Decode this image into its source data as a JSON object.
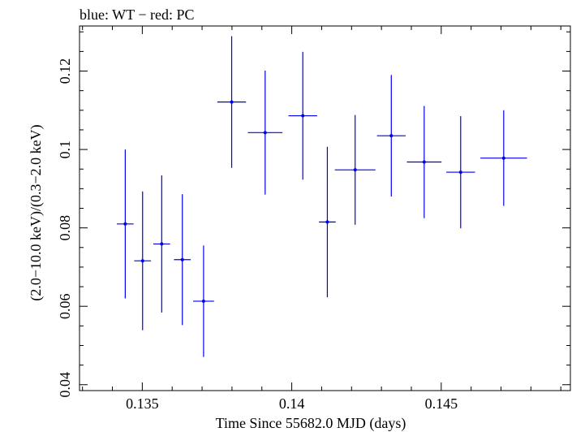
{
  "chart_data": {
    "type": "scatter",
    "title": "blue: WT − red: PC",
    "xlabel": "Time Since 55682.0 MJD (days)",
    "ylabel": "(2.0−10.0 keV)/(0.3−2.0 keV)",
    "xlim": [
      0.1329,
      0.14932
    ],
    "ylim": [
      0.0385,
      0.1315
    ],
    "x_ticks": [
      0.135,
      0.14,
      0.145
    ],
    "x_tick_labels": [
      "0.135",
      "0.14",
      "0.145"
    ],
    "y_ticks": [
      0.04,
      0.06,
      0.08,
      0.1,
      0.12
    ],
    "y_tick_labels": [
      "0.04",
      "0.06",
      "0.08",
      "0.1",
      "0.12"
    ],
    "grid": false,
    "series": [
      {
        "color": "#0000ee",
        "points": [
          {
            "x": 0.13443,
            "x_err": 0.00028,
            "y": 0.081,
            "y_err": 0.019
          },
          {
            "x": 0.13501,
            "x_err": 0.00028,
            "y": 0.0716,
            "y_err": 0.0177
          },
          {
            "x": 0.13565,
            "x_err": 0.00028,
            "y": 0.0759,
            "y_err": 0.0175
          },
          {
            "x": 0.13634,
            "x_err": 0.00028,
            "y": 0.0719,
            "y_err": 0.0167
          },
          {
            "x": 0.13705,
            "x_err": 0.00035,
            "y": 0.0613,
            "y_err": 0.0142
          },
          {
            "x": 0.13799,
            "x_err": 0.00048,
            "y": 0.1121,
            "y_err": 0.0168
          },
          {
            "x": 0.13911,
            "x_err": 0.00058,
            "y": 0.1043,
            "y_err": 0.0158
          },
          {
            "x": 0.14037,
            "x_err": 0.00048,
            "y": 0.1086,
            "y_err": 0.0163
          },
          {
            "x": 0.14119,
            "x_err": 0.00028,
            "y": 0.0815,
            "y_err": 0.0192
          },
          {
            "x": 0.14212,
            "x_err": 0.00068,
            "y": 0.0948,
            "y_err": 0.014
          },
          {
            "x": 0.14333,
            "x_err": 0.00048,
            "y": 0.1035,
            "y_err": 0.0155
          },
          {
            "x": 0.14443,
            "x_err": 0.00058,
            "y": 0.0968,
            "y_err": 0.0143
          },
          {
            "x": 0.14565,
            "x_err": 0.00048,
            "y": 0.0942,
            "y_err": 0.0143
          },
          {
            "x": 0.14709,
            "x_err": 0.00078,
            "y": 0.0978,
            "y_err": 0.0122
          }
        ]
      }
    ]
  }
}
